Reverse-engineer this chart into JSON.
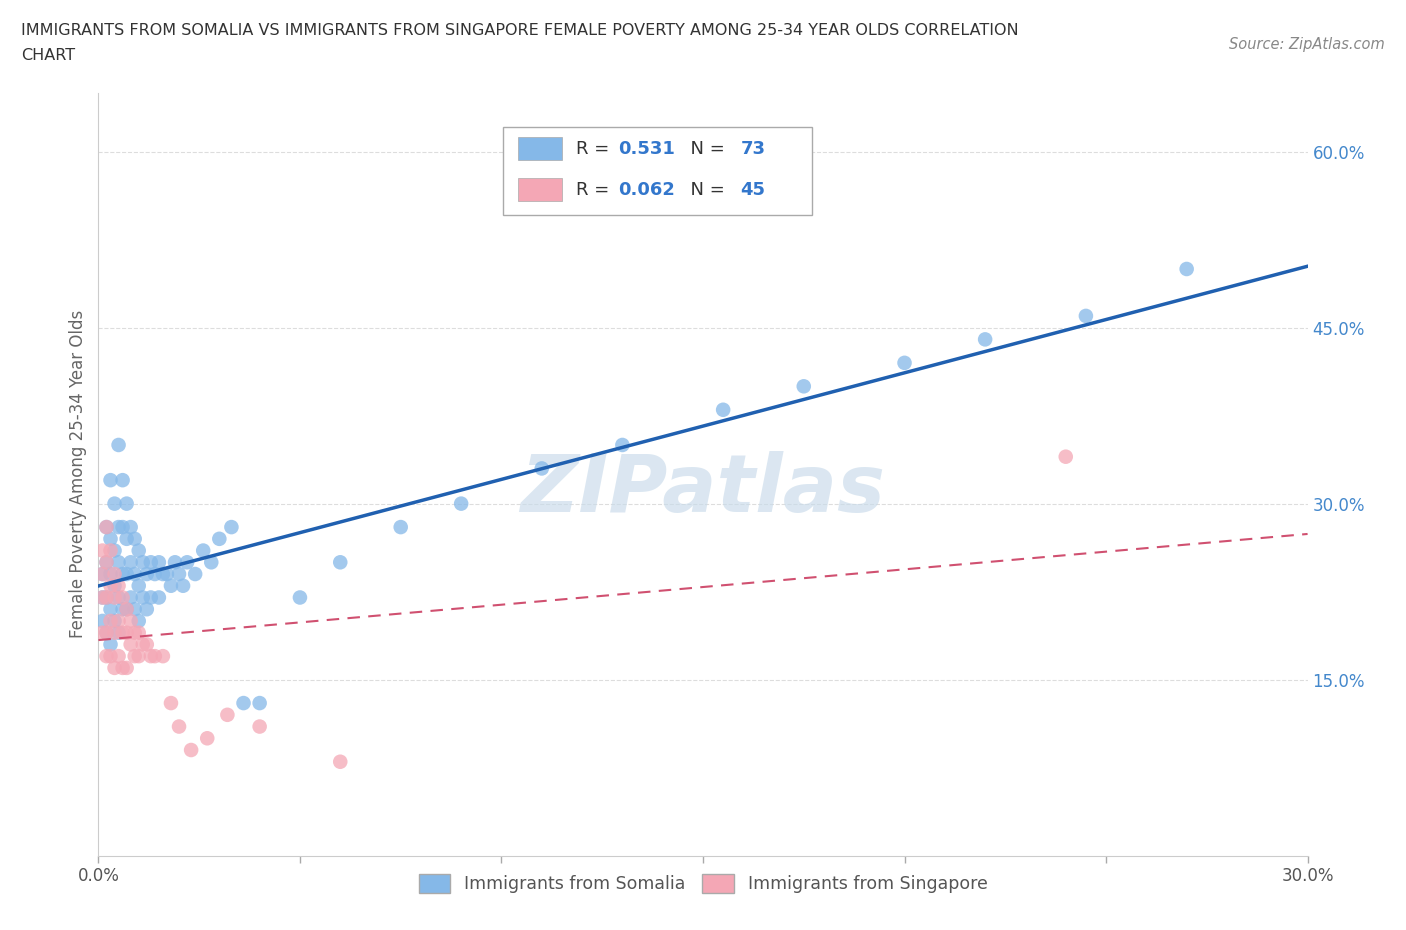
{
  "title_line1": "IMMIGRANTS FROM SOMALIA VS IMMIGRANTS FROM SINGAPORE FEMALE POVERTY AMONG 25-34 YEAR OLDS CORRELATION",
  "title_line2": "CHART",
  "source": "Source: ZipAtlas.com",
  "ylabel": "Female Poverty Among 25-34 Year Olds",
  "xlim": [
    0.0,
    0.3
  ],
  "ylim": [
    0.0,
    0.65
  ],
  "somalia_color": "#85b8e8",
  "singapore_color": "#f4a7b5",
  "somalia_line_color": "#2060b0",
  "singapore_line_color": "#d05070",
  "somalia_R": 0.531,
  "somalia_N": 73,
  "singapore_R": 0.062,
  "singapore_N": 45,
  "watermark": "ZIPatlas",
  "watermark_color": "#c8daea",
  "legend_label_somalia": "Immigrants from Somalia",
  "legend_label_singapore": "Immigrants from Singapore",
  "background_color": "#ffffff",
  "grid_color": "#dddddd",
  "ytick_color": "#4488cc",
  "xtick_color": "#555555",
  "somalia_x": [
    0.001,
    0.001,
    0.001,
    0.002,
    0.002,
    0.002,
    0.002,
    0.003,
    0.003,
    0.003,
    0.003,
    0.003,
    0.004,
    0.004,
    0.004,
    0.004,
    0.005,
    0.005,
    0.005,
    0.005,
    0.005,
    0.006,
    0.006,
    0.006,
    0.006,
    0.007,
    0.007,
    0.007,
    0.007,
    0.008,
    0.008,
    0.008,
    0.009,
    0.009,
    0.009,
    0.01,
    0.01,
    0.01,
    0.011,
    0.011,
    0.012,
    0.012,
    0.013,
    0.013,
    0.014,
    0.015,
    0.015,
    0.016,
    0.017,
    0.018,
    0.019,
    0.02,
    0.021,
    0.022,
    0.024,
    0.026,
    0.028,
    0.03,
    0.033,
    0.036,
    0.04,
    0.05,
    0.06,
    0.075,
    0.09,
    0.11,
    0.13,
    0.155,
    0.175,
    0.2,
    0.22,
    0.245,
    0.27
  ],
  "somalia_y": [
    0.22,
    0.24,
    0.2,
    0.28,
    0.25,
    0.22,
    0.19,
    0.32,
    0.27,
    0.24,
    0.21,
    0.18,
    0.3,
    0.26,
    0.23,
    0.2,
    0.35,
    0.28,
    0.25,
    0.22,
    0.19,
    0.32,
    0.28,
    0.24,
    0.21,
    0.3,
    0.27,
    0.24,
    0.21,
    0.28,
    0.25,
    0.22,
    0.27,
    0.24,
    0.21,
    0.26,
    0.23,
    0.2,
    0.25,
    0.22,
    0.24,
    0.21,
    0.25,
    0.22,
    0.24,
    0.25,
    0.22,
    0.24,
    0.24,
    0.23,
    0.25,
    0.24,
    0.23,
    0.25,
    0.24,
    0.26,
    0.25,
    0.27,
    0.28,
    0.13,
    0.13,
    0.22,
    0.25,
    0.28,
    0.3,
    0.33,
    0.35,
    0.38,
    0.4,
    0.42,
    0.44,
    0.46,
    0.5
  ],
  "singapore_x": [
    0.001,
    0.001,
    0.001,
    0.001,
    0.002,
    0.002,
    0.002,
    0.002,
    0.002,
    0.003,
    0.003,
    0.003,
    0.003,
    0.004,
    0.004,
    0.004,
    0.004,
    0.005,
    0.005,
    0.005,
    0.006,
    0.006,
    0.006,
    0.007,
    0.007,
    0.007,
    0.008,
    0.008,
    0.009,
    0.009,
    0.01,
    0.01,
    0.011,
    0.012,
    0.013,
    0.014,
    0.016,
    0.018,
    0.02,
    0.023,
    0.027,
    0.032,
    0.04,
    0.06,
    0.24
  ],
  "singapore_y": [
    0.26,
    0.24,
    0.22,
    0.19,
    0.28,
    0.25,
    0.22,
    0.19,
    0.17,
    0.26,
    0.23,
    0.2,
    0.17,
    0.24,
    0.22,
    0.19,
    0.16,
    0.23,
    0.2,
    0.17,
    0.22,
    0.19,
    0.16,
    0.21,
    0.19,
    0.16,
    0.2,
    0.18,
    0.19,
    0.17,
    0.19,
    0.17,
    0.18,
    0.18,
    0.17,
    0.17,
    0.17,
    0.13,
    0.11,
    0.09,
    0.1,
    0.12,
    0.11,
    0.08,
    0.34
  ]
}
